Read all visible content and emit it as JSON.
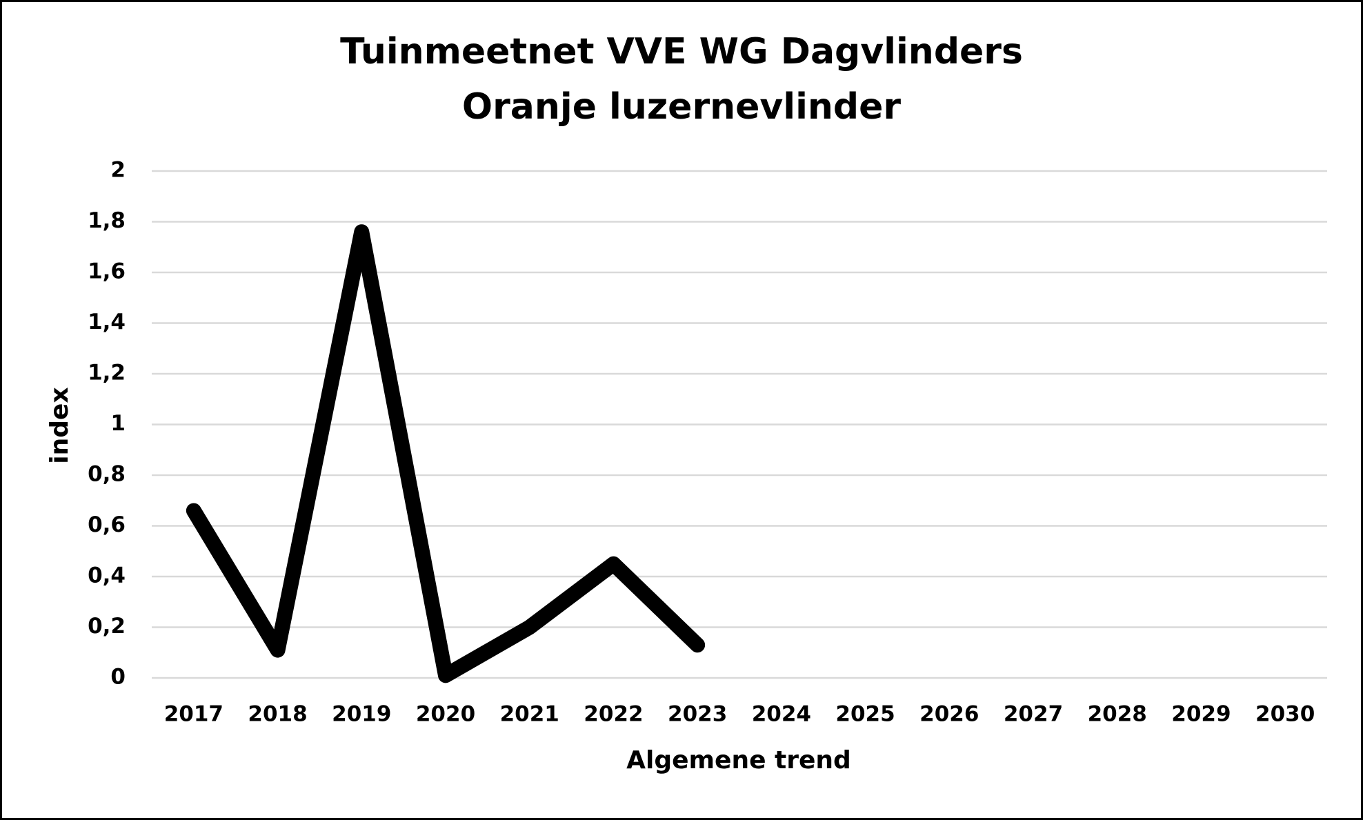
{
  "chart_data": {
    "type": "line",
    "title": "Tuinmeetnet VVE WG Dagvlinders",
    "subtitle": "Oranje luzernevlinder",
    "x_label": "Algemene trend",
    "y_label": "index",
    "categories": [
      "2017",
      "2018",
      "2019",
      "2020",
      "2021",
      "2022",
      "2023",
      "2024",
      "2025",
      "2026",
      "2027",
      "2028",
      "2029",
      "2030"
    ],
    "series": [
      {
        "color": "#000000",
        "values": [
          0.66,
          0.11,
          1.76,
          0.01,
          0.2,
          0.45,
          0.13,
          null,
          null,
          null,
          null,
          null,
          null,
          null
        ]
      }
    ],
    "ylim": [
      0,
      2
    ],
    "yticks": [
      0,
      {
        "value": 0.2,
        "label": "0,2"
      },
      {
        "value": 0.4,
        "label": "0,4"
      },
      {
        "value": 0.6,
        "label": "0,6"
      },
      {
        "value": 0.8,
        "label": "0,8"
      },
      1,
      {
        "value": 1.2,
        "label": "1,2"
      },
      {
        "value": 1.4,
        "label": "1,4"
      },
      {
        "value": 1.6,
        "label": "1,6"
      },
      {
        "value": 1.8,
        "label": "1,8"
      },
      2
    ],
    "grid": true
  }
}
